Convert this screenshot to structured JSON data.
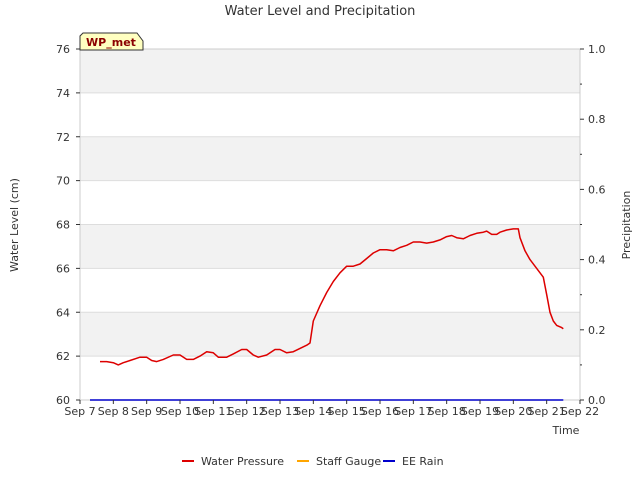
{
  "chart_data": {
    "type": "line",
    "title": "Water Level and Precipitation",
    "site_label": "WP_met",
    "xlabel": "Time",
    "ylabel": "Water Level (cm)",
    "y2label": "Precipitation",
    "x_ticks": [
      "Sep 7",
      "Sep 8",
      "Sep 9",
      "Sep 10",
      "Sep 11",
      "Sep 12",
      "Sep 13",
      "Sep 14",
      "Sep 15",
      "Sep 16",
      "Sep 17",
      "Sep 18",
      "Sep 19",
      "Sep 20",
      "Sep 21",
      "Sep 22"
    ],
    "xlim": [
      7,
      22
    ],
    "ylim": [
      60,
      76
    ],
    "y_ticks": [
      60,
      62,
      64,
      66,
      68,
      70,
      72,
      74,
      76
    ],
    "y2lim": [
      0.0,
      1.0
    ],
    "y2_ticks": [
      "0.0",
      "0.2",
      "0.4",
      "0.6",
      "0.8",
      "1.0"
    ],
    "grid": "horizontal bands",
    "legend_position": "bottom",
    "series": [
      {
        "name": "Water Pressure",
        "color": "#dd0000",
        "axis": "left",
        "points": [
          [
            7.6,
            61.75
          ],
          [
            7.8,
            61.75
          ],
          [
            8.0,
            61.7
          ],
          [
            8.15,
            61.6
          ],
          [
            8.3,
            61.7
          ],
          [
            8.5,
            61.8
          ],
          [
            8.8,
            61.95
          ],
          [
            9.0,
            61.95
          ],
          [
            9.15,
            61.8
          ],
          [
            9.3,
            61.75
          ],
          [
            9.5,
            61.85
          ],
          [
            9.8,
            62.05
          ],
          [
            10.0,
            62.05
          ],
          [
            10.2,
            61.85
          ],
          [
            10.4,
            61.85
          ],
          [
            10.6,
            62.0
          ],
          [
            10.8,
            62.2
          ],
          [
            11.0,
            62.15
          ],
          [
            11.15,
            61.95
          ],
          [
            11.4,
            61.95
          ],
          [
            11.6,
            62.1
          ],
          [
            11.85,
            62.3
          ],
          [
            12.0,
            62.3
          ],
          [
            12.2,
            62.05
          ],
          [
            12.35,
            61.95
          ],
          [
            12.6,
            62.05
          ],
          [
            12.85,
            62.3
          ],
          [
            13.0,
            62.3
          ],
          [
            13.2,
            62.15
          ],
          [
            13.4,
            62.2
          ],
          [
            13.6,
            62.35
          ],
          [
            13.8,
            62.5
          ],
          [
            13.9,
            62.6
          ],
          [
            14.0,
            63.6
          ],
          [
            14.2,
            64.3
          ],
          [
            14.4,
            64.9
          ],
          [
            14.6,
            65.4
          ],
          [
            14.8,
            65.8
          ],
          [
            15.0,
            66.1
          ],
          [
            15.2,
            66.1
          ],
          [
            15.4,
            66.2
          ],
          [
            15.6,
            66.45
          ],
          [
            15.8,
            66.7
          ],
          [
            16.0,
            66.85
          ],
          [
            16.2,
            66.85
          ],
          [
            16.4,
            66.8
          ],
          [
            16.6,
            66.95
          ],
          [
            16.8,
            67.05
          ],
          [
            17.0,
            67.2
          ],
          [
            17.2,
            67.2
          ],
          [
            17.4,
            67.15
          ],
          [
            17.6,
            67.2
          ],
          [
            17.8,
            67.3
          ],
          [
            18.0,
            67.45
          ],
          [
            18.15,
            67.5
          ],
          [
            18.3,
            67.4
          ],
          [
            18.5,
            67.35
          ],
          [
            18.7,
            67.5
          ],
          [
            18.9,
            67.6
          ],
          [
            19.1,
            67.65
          ],
          [
            19.2,
            67.7
          ],
          [
            19.35,
            67.55
          ],
          [
            19.5,
            67.55
          ],
          [
            19.6,
            67.65
          ],
          [
            19.8,
            67.75
          ],
          [
            20.0,
            67.8
          ],
          [
            20.15,
            67.8
          ],
          [
            20.2,
            67.4
          ],
          [
            20.35,
            66.8
          ],
          [
            20.5,
            66.4
          ],
          [
            20.7,
            66.0
          ],
          [
            20.9,
            65.6
          ],
          [
            21.0,
            64.8
          ],
          [
            21.1,
            64.0
          ],
          [
            21.2,
            63.6
          ],
          [
            21.3,
            63.4
          ],
          [
            21.45,
            63.3
          ],
          [
            21.5,
            63.25
          ]
        ]
      },
      {
        "name": "Staff Gauge",
        "color": "#ffa500",
        "axis": "left",
        "points": []
      },
      {
        "name": "EE Rain",
        "color": "#0000cc",
        "axis": "right",
        "points": [
          [
            7.3,
            0.0
          ],
          [
            21.5,
            0.0
          ]
        ]
      }
    ]
  }
}
